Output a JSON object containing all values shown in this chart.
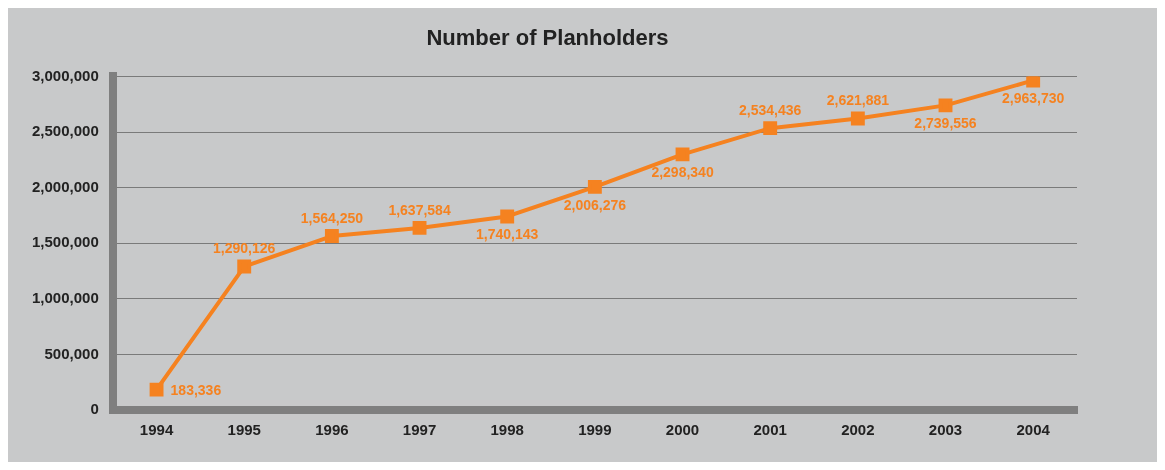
{
  "chart_data": {
    "type": "line",
    "title": "Number of Planholders",
    "categories": [
      "1994",
      "1995",
      "1996",
      "1997",
      "1998",
      "1999",
      "2000",
      "2001",
      "2002",
      "2003",
      "2004"
    ],
    "series": [
      {
        "color": "#f58220",
        "values": [
          183336,
          1290126,
          1564250,
          1637584,
          1740143,
          2006276,
          2298340,
          2534436,
          2621881,
          2739556,
          2963730
        ],
        "value_labels": [
          "183,336",
          "1,290,126",
          "1,564,250",
          "1,637,584",
          "1,740,143",
          "2,006,276",
          "2,298,340",
          "2,534,436",
          "2,621,881",
          "2,739,556",
          "2,963,730"
        ]
      }
    ],
    "ylim": [
      0,
      3000000
    ],
    "yticks": [
      {
        "value": 0,
        "label": "0"
      },
      {
        "value": 500000,
        "label": "500,000"
      },
      {
        "value": 1000000,
        "label": "1,000,000"
      },
      {
        "value": 1500000,
        "label": "1,500,000"
      },
      {
        "value": 2000000,
        "label": "2,000,000"
      },
      {
        "value": 2500000,
        "label": "2,500,000"
      },
      {
        "value": 3000000,
        "label": "3,000,000"
      }
    ],
    "grid": "y",
    "legend": false,
    "marker": "square",
    "line_style": "solid"
  }
}
